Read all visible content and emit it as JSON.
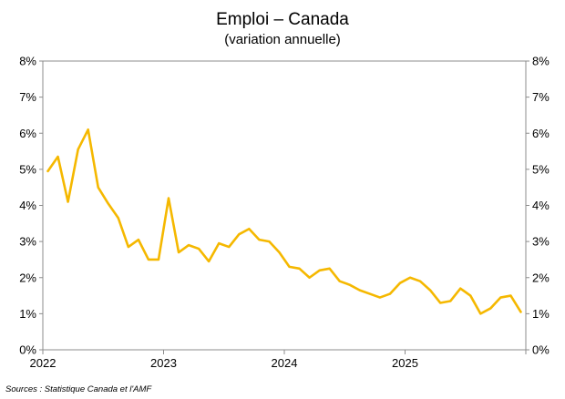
{
  "chart_data": {
    "type": "line",
    "title": "Emploi – Canada",
    "subtitle": "(variation annuelle)",
    "source": "Sources : Statistique Canada et l'AMF",
    "ylim": [
      0,
      8
    ],
    "y_ticks": [
      "0%",
      "1%",
      "2%",
      "3%",
      "4%",
      "5%",
      "6%",
      "7%",
      "8%"
    ],
    "y2_ticks": [
      "0%",
      "1%",
      "2%",
      "3%",
      "4%",
      "5%",
      "6%",
      "7%",
      "8%"
    ],
    "x_ticks": [
      "2022",
      "2023",
      "2024",
      "2025"
    ],
    "grid": false,
    "line_color": "#F5B800",
    "series": [
      {
        "x": [
          "2022-01",
          "2022-02",
          "2022-03",
          "2022-04",
          "2022-05",
          "2022-06",
          "2022-07",
          "2022-08",
          "2022-09",
          "2022-10",
          "2022-11",
          "2022-12",
          "2023-01",
          "2023-02",
          "2023-03",
          "2023-04",
          "2023-05",
          "2023-06",
          "2023-07",
          "2023-08",
          "2023-09",
          "2023-10",
          "2023-11",
          "2023-12",
          "2024-01",
          "2024-02",
          "2024-03",
          "2024-04",
          "2024-05",
          "2024-06",
          "2024-07",
          "2024-08",
          "2024-09",
          "2024-10",
          "2024-11",
          "2024-12",
          "2025-01",
          "2025-02",
          "2025-03",
          "2025-04",
          "2025-05",
          "2025-06",
          "2025-07",
          "2025-08",
          "2025-09",
          "2025-10",
          "2025-11",
          "2025-12"
        ],
        "values": [
          4.95,
          5.35,
          4.1,
          5.55,
          6.1,
          4.5,
          4.05,
          3.65,
          2.85,
          3.05,
          2.5,
          2.5,
          4.2,
          2.7,
          2.9,
          2.8,
          2.45,
          2.95,
          2.85,
          3.2,
          3.35,
          3.05,
          3.0,
          2.7,
          2.3,
          2.25,
          2.0,
          2.2,
          2.25,
          1.9,
          1.8,
          1.65,
          1.55,
          1.45,
          1.55,
          1.85,
          2.0,
          1.9,
          1.65,
          1.3,
          1.35,
          1.7,
          1.5,
          1.0,
          1.15,
          1.45,
          1.5,
          1.05
        ]
      }
    ]
  }
}
